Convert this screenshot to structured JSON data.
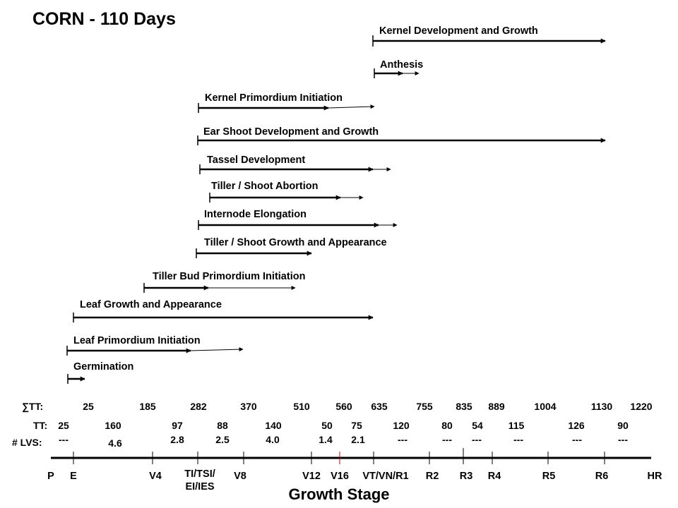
{
  "title": "CORN - 110 Days",
  "axis_title": "Growth Stage",
  "processes": [
    "Kernel Development and Growth",
    "Anthesis",
    "Kernel Primordium Initiation",
    "Ear Shoot Development and Growth",
    "Tassel Development",
    "Tiller / Shoot Abortion",
    "Internode Elongation",
    "Tiller / Shoot Growth and Appearance",
    "Tiller Bud Primordium Initiation",
    "Leaf Growth and Appearance",
    "Leaf Primordium Initiation",
    "Germination"
  ],
  "row_labels": {
    "sum_tt": "∑TT:",
    "tt": "TT:",
    "lvs": "# LVS:"
  },
  "sum_tt": [
    "25",
    "185",
    "282",
    "370",
    "510",
    "560",
    "635",
    "755",
    "835",
    "889",
    "1004",
    "1130",
    "1220"
  ],
  "tt": [
    "25",
    "160",
    "97",
    "88",
    "140",
    "50",
    "75",
    "120",
    "80",
    "54",
    "115",
    "126",
    "90"
  ],
  "lvs": [
    "---",
    "4.6",
    "2.8",
    "2.5",
    "4.0",
    "1.4",
    "2.1",
    "---",
    "---",
    "---",
    "---",
    "---",
    "---"
  ],
  "stages": [
    "P",
    "E",
    "V4",
    "TI/TSI/",
    "EI/IES",
    "V8",
    "V12",
    "V16",
    "VT/VN/R1",
    "R2",
    "R3",
    "R4",
    "R5",
    "R6",
    "HR"
  ]
}
